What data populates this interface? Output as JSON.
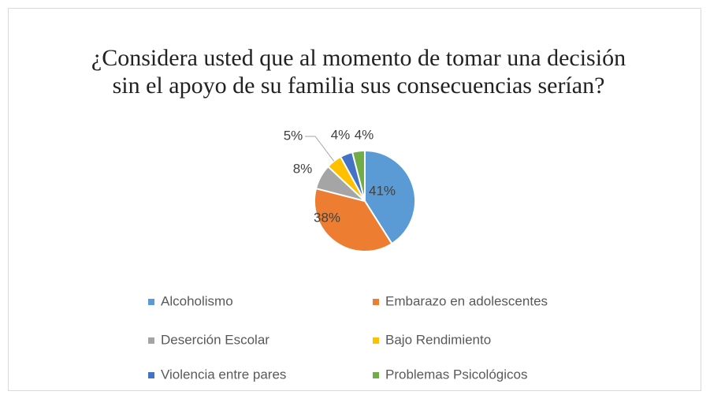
{
  "chart_data": {
    "type": "pie",
    "title": "¿Considera usted que al momento de tomar una decisión sin el apoyo de su familia sus consecuencias serían?",
    "categories": [
      "Alcoholismo",
      "Embarazo en adolescentes",
      "Deserción Escolar",
      "Bajo Rendimiento",
      "Violencia entre pares",
      "Problemas Psicológicos"
    ],
    "values": [
      41,
      38,
      8,
      5,
      4,
      4
    ],
    "value_labels": [
      "41%",
      "38%",
      "8%",
      "5%",
      "4%",
      "4%"
    ],
    "colors": [
      "#5b9bd5",
      "#ed7d31",
      "#a5a5a5",
      "#ffc000",
      "#4472c4",
      "#70ad47"
    ],
    "legend": "bottom"
  }
}
